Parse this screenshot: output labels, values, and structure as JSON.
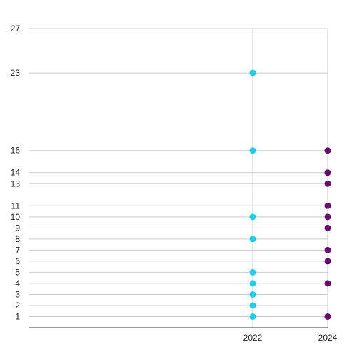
{
  "chart_data": {
    "type": "scatter",
    "title": "",
    "xlabel": "",
    "ylabel": "",
    "x_categories": [
      "2022",
      "2024"
    ],
    "y_ticks": [
      1,
      2,
      3,
      4,
      5,
      6,
      7,
      8,
      9,
      10,
      11,
      13,
      14,
      16,
      23,
      27
    ],
    "ylim": [
      0,
      27
    ],
    "grid": true,
    "series": [
      {
        "color": "#1ccfee",
        "points": [
          {
            "x": "2022",
            "y": 23
          },
          {
            "x": "2022",
            "y": 16
          },
          {
            "x": "2022",
            "y": 10
          },
          {
            "x": "2022",
            "y": 8
          },
          {
            "x": "2022",
            "y": 5
          },
          {
            "x": "2022",
            "y": 4
          },
          {
            "x": "2022",
            "y": 3
          },
          {
            "x": "2022",
            "y": 2
          },
          {
            "x": "2022",
            "y": 1
          }
        ]
      },
      {
        "color": "#6b0a73",
        "points": [
          {
            "x": "2024",
            "y": 16
          },
          {
            "x": "2024",
            "y": 14
          },
          {
            "x": "2024",
            "y": 13
          },
          {
            "x": "2024",
            "y": 11
          },
          {
            "x": "2024",
            "y": 10
          },
          {
            "x": "2024",
            "y": 9
          },
          {
            "x": "2024",
            "y": 7
          },
          {
            "x": "2024",
            "y": 6
          },
          {
            "x": "2024",
            "y": 4
          },
          {
            "x": "2024",
            "y": 1
          }
        ]
      }
    ]
  }
}
